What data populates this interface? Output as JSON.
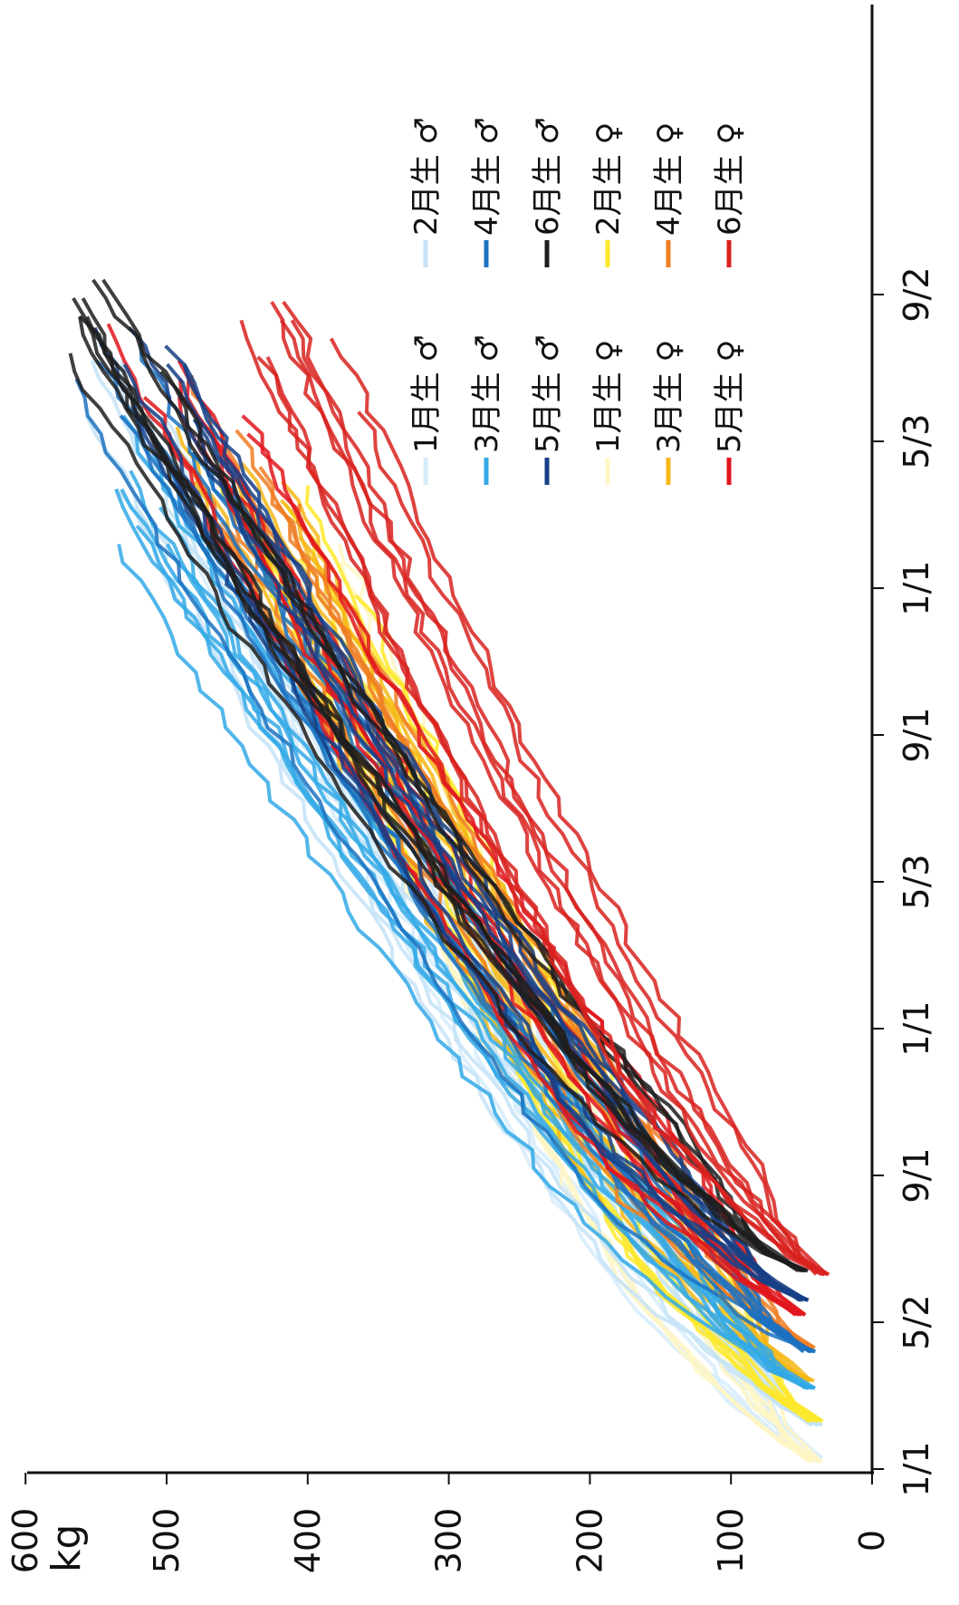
{
  "chart_data": {
    "type": "line",
    "orientation": "rotated 90 degrees counter-clockwise",
    "unit_label": "kg",
    "ylim": [
      0,
      600
    ],
    "y_ticks": [
      "0",
      "100",
      "200",
      "300",
      "400",
      "500",
      "600"
    ],
    "x_ticks": [
      "1/1",
      "5/2",
      "9/1",
      "1/1",
      "5/3",
      "9/1",
      "1/1",
      "5/3",
      "9/2"
    ],
    "x_tick_months": [
      0,
      4,
      8,
      12,
      16,
      20,
      24,
      28,
      32
    ],
    "xlim_months": [
      0,
      34
    ],
    "legend_placement": "top-right",
    "series": [
      {
        "name": "1月生 ♂",
        "color": "#d6ecfb",
        "birth_month": 0.3,
        "start": [
          0.3,
          40
        ],
        "end": [
          26.5,
          470
        ]
      },
      {
        "name": "2月生 ♂",
        "color": "#c4e3f7",
        "birth_month": 1.2,
        "start": [
          1.2,
          40
        ],
        "end": [
          30.5,
          560
        ]
      },
      {
        "name": "3月生 ♂",
        "color": "#33a9e6",
        "birth_month": 2.2,
        "start": [
          2.2,
          45
        ],
        "end": [
          29.5,
          575
        ]
      },
      {
        "name": "4月生 ♂",
        "color": "#1b71bf",
        "birth_month": 3.2,
        "start": [
          3.2,
          45
        ],
        "end": [
          31.5,
          560
        ]
      },
      {
        "name": "5月生 ♂",
        "color": "#163f86",
        "birth_month": 4.6,
        "start": [
          4.6,
          50
        ],
        "end": [
          32.5,
          540
        ]
      },
      {
        "name": "6月生 ♂",
        "color": "#1d1d1d",
        "birth_month": 5.4,
        "start": [
          5.4,
          50
        ],
        "end": [
          32.8,
          580
        ]
      },
      {
        "name": "1月生 ♀",
        "color": "#fff6c4",
        "birth_month": 0.2,
        "start": [
          0.2,
          40
        ],
        "end": [
          26.0,
          420
        ]
      },
      {
        "name": "2月生 ♀",
        "color": "#fde92c",
        "birth_month": 1.3,
        "start": [
          1.3,
          40
        ],
        "end": [
          27.5,
          440
        ]
      },
      {
        "name": "3月生 ♀",
        "color": "#f6b717",
        "birth_month": 2.4,
        "start": [
          2.4,
          45
        ],
        "end": [
          28.5,
          470
        ]
      },
      {
        "name": "4月生 ♀",
        "color": "#ef7d22",
        "birth_month": 3.3,
        "start": [
          3.3,
          45
        ],
        "end": [
          30.0,
          490
        ]
      },
      {
        "name": "5月生 ♀",
        "color": "#e1161c",
        "birth_month": 4.2,
        "start": [
          4.2,
          50
        ],
        "end": [
          32.0,
          520
        ]
      },
      {
        "name": "6月生 ♀",
        "color": "#d8221f",
        "birth_month": 5.3,
        "start": [
          5.3,
          35
        ],
        "end": [
          32.5,
          430
        ]
      }
    ]
  }
}
